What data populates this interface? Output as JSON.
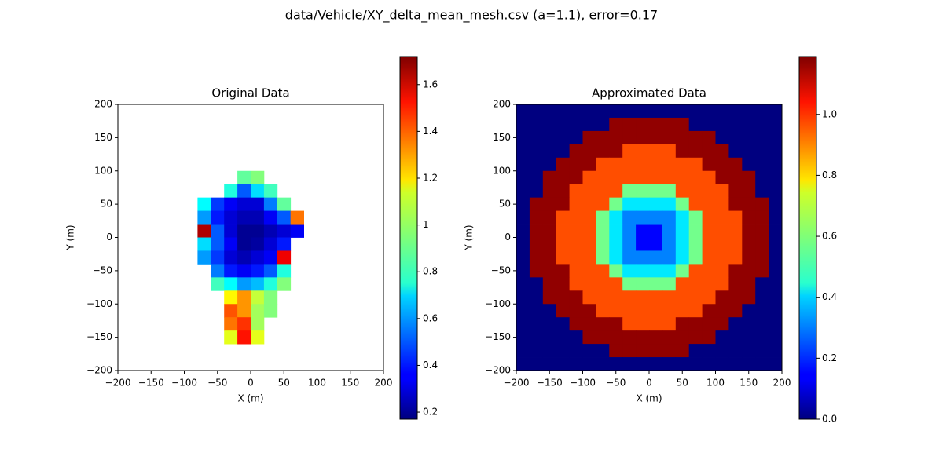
{
  "suptitle": "data/Vehicle/XY_delta_mean_mesh.csv (a=1.1), error=0.17",
  "chart_data": [
    {
      "type": "heatmap",
      "title": "Original Data",
      "x_label": "X (m)",
      "y_label": "Y (m)",
      "colormap": "jet",
      "xlim": [
        -200,
        200
      ],
      "ylim": [
        -200,
        200
      ],
      "xticks": [
        {
          "value": -200,
          "label": "−200"
        },
        {
          "value": -150,
          "label": "−150"
        },
        {
          "value": -100,
          "label": "−100"
        },
        {
          "value": -50,
          "label": "−50"
        },
        0,
        50,
        100,
        150,
        200
      ],
      "yticks": [
        {
          "value": -200,
          "label": "−200"
        },
        {
          "value": -150,
          "label": "−150"
        },
        {
          "value": -100,
          "label": "−100"
        },
        {
          "value": -50,
          "label": "−50"
        },
        0,
        50,
        100,
        150,
        200
      ],
      "clim": [
        0.17,
        1.72
      ],
      "cticks": [
        0.2,
        0.4,
        0.6,
        0.8,
        1.0,
        1.2,
        1.4,
        1.6
      ],
      "xbins": [
        -80,
        -60,
        -40,
        -20,
        0,
        20,
        40,
        60,
        80
      ],
      "ybins": [
        100,
        80,
        60,
        40,
        20,
        0,
        -20,
        -40,
        -60,
        -80,
        -100,
        -120,
        -140,
        -160
      ],
      "values": [
        [
          null,
          null,
          null,
          0.9,
          0.95,
          null,
          null,
          null
        ],
        [
          null,
          null,
          0.8,
          0.5,
          0.7,
          0.85,
          null,
          null
        ],
        [
          0.75,
          0.45,
          0.35,
          0.3,
          0.3,
          0.55,
          0.9,
          null
        ],
        [
          0.6,
          0.4,
          0.3,
          0.25,
          0.25,
          0.35,
          0.5,
          1.35
        ],
        [
          1.65,
          0.5,
          0.3,
          0.2,
          0.2,
          0.25,
          0.3,
          0.35
        ],
        [
          0.7,
          0.5,
          0.35,
          0.2,
          0.22,
          0.3,
          0.4,
          null
        ],
        [
          0.6,
          0.45,
          0.3,
          0.25,
          0.3,
          0.35,
          1.55,
          null
        ],
        [
          null,
          0.55,
          0.4,
          0.35,
          0.4,
          0.5,
          0.8,
          null
        ],
        [
          null,
          0.85,
          0.75,
          0.6,
          0.65,
          0.8,
          0.95,
          null
        ],
        [
          null,
          null,
          1.15,
          1.3,
          1.05,
          0.95,
          null,
          null
        ],
        [
          null,
          null,
          1.4,
          1.3,
          1.0,
          0.95,
          null,
          null
        ],
        [
          null,
          null,
          1.35,
          1.45,
          1.0,
          null,
          null,
          null
        ],
        [
          null,
          null,
          1.1,
          1.5,
          1.1,
          null,
          null,
          null
        ]
      ]
    },
    {
      "type": "heatmap",
      "title": "Approximated Data",
      "x_label": "X (m)",
      "y_label": "Y (m)",
      "colormap": "jet",
      "xlim": [
        -200,
        200
      ],
      "ylim": [
        -200,
        200
      ],
      "xticks": [
        {
          "value": -200,
          "label": "−200"
        },
        {
          "value": -150,
          "label": "−150"
        },
        {
          "value": -100,
          "label": "−100"
        },
        {
          "value": -50,
          "label": "−50"
        },
        0,
        50,
        100,
        150,
        200
      ],
      "yticks": [
        {
          "value": -200,
          "label": "−200"
        },
        {
          "value": -150,
          "label": "−150"
        },
        {
          "value": -100,
          "label": "−100"
        },
        {
          "value": -50,
          "label": "−50"
        },
        0,
        50,
        100,
        150,
        200
      ],
      "clim": [
        0,
        1.19
      ],
      "cticks": [
        {
          "value": 0,
          "label": "0.0"
        },
        0.2,
        0.4,
        0.6,
        0.8,
        {
          "value": 1,
          "label": "1.0"
        }
      ],
      "xbins": [
        -200,
        -180,
        -160,
        -140,
        -120,
        -100,
        -80,
        -60,
        -40,
        -20,
        0,
        20,
        40,
        60,
        80,
        100,
        120,
        140,
        160,
        180,
        200
      ],
      "ybins": [
        200,
        180,
        160,
        140,
        120,
        100,
        80,
        60,
        40,
        20,
        0,
        -20,
        -40,
        -60,
        -80,
        -100,
        -120,
        -140,
        -160,
        -180,
        -200
      ],
      "values": [
        [
          0,
          0,
          0,
          0,
          0,
          0,
          0,
          0,
          0,
          0,
          0,
          0,
          0,
          0,
          0,
          0,
          0,
          0,
          0,
          0
        ],
        [
          0,
          0,
          0,
          0,
          0,
          0,
          0,
          1.17,
          1.17,
          1.17,
          1.17,
          1.17,
          1.17,
          0,
          0,
          0,
          0,
          0,
          0,
          0
        ],
        [
          0,
          0,
          0,
          0,
          0,
          1.17,
          1.17,
          1.17,
          1.17,
          1.17,
          1.17,
          1.17,
          1.17,
          1.17,
          1.17,
          0,
          0,
          0,
          0,
          0
        ],
        [
          0,
          0,
          0,
          0,
          1.17,
          1.17,
          1.17,
          1.17,
          0.95,
          0.95,
          0.95,
          0.95,
          1.17,
          1.17,
          1.17,
          1.17,
          0,
          0,
          0,
          0
        ],
        [
          0,
          0,
          0,
          1.17,
          1.17,
          1.17,
          0.95,
          0.95,
          0.95,
          0.95,
          0.95,
          0.95,
          0.95,
          0.95,
          1.17,
          1.17,
          1.17,
          0,
          0,
          0
        ],
        [
          0,
          0,
          1.17,
          1.17,
          1.17,
          0.95,
          0.95,
          0.95,
          0.95,
          0.95,
          0.95,
          0.95,
          0.95,
          0.95,
          0.95,
          1.17,
          1.17,
          1.17,
          0,
          0
        ],
        [
          0,
          0,
          1.17,
          1.17,
          0.95,
          0.95,
          0.95,
          0.95,
          0.58,
          0.58,
          0.58,
          0.58,
          0.95,
          0.95,
          0.95,
          0.95,
          1.17,
          1.17,
          0,
          0
        ],
        [
          0,
          1.17,
          1.17,
          1.17,
          0.95,
          0.95,
          0.95,
          0.58,
          0.42,
          0.42,
          0.42,
          0.42,
          0.58,
          0.95,
          0.95,
          0.95,
          1.17,
          1.17,
          1.17,
          0
        ],
        [
          0,
          1.17,
          1.17,
          0.95,
          0.95,
          0.95,
          0.58,
          0.42,
          0.3,
          0.3,
          0.3,
          0.3,
          0.42,
          0.58,
          0.95,
          0.95,
          0.95,
          1.17,
          1.17,
          0
        ],
        [
          0,
          1.17,
          1.17,
          0.95,
          0.95,
          0.95,
          0.58,
          0.42,
          0.3,
          0.15,
          0.15,
          0.3,
          0.42,
          0.58,
          0.95,
          0.95,
          0.95,
          1.17,
          1.17,
          0
        ],
        [
          0,
          1.17,
          1.17,
          0.95,
          0.95,
          0.95,
          0.58,
          0.42,
          0.3,
          0.15,
          0.15,
          0.3,
          0.42,
          0.58,
          0.95,
          0.95,
          0.95,
          1.17,
          1.17,
          0
        ],
        [
          0,
          1.17,
          1.17,
          0.95,
          0.95,
          0.95,
          0.58,
          0.42,
          0.3,
          0.3,
          0.3,
          0.3,
          0.42,
          0.58,
          0.95,
          0.95,
          0.95,
          1.17,
          1.17,
          0
        ],
        [
          0,
          1.17,
          1.17,
          1.17,
          0.95,
          0.95,
          0.95,
          0.58,
          0.42,
          0.42,
          0.42,
          0.42,
          0.58,
          0.95,
          0.95,
          0.95,
          1.17,
          1.17,
          1.17,
          0
        ],
        [
          0,
          0,
          1.17,
          1.17,
          0.95,
          0.95,
          0.95,
          0.95,
          0.58,
          0.58,
          0.58,
          0.58,
          0.95,
          0.95,
          0.95,
          0.95,
          1.17,
          1.17,
          0,
          0
        ],
        [
          0,
          0,
          1.17,
          1.17,
          1.17,
          0.95,
          0.95,
          0.95,
          0.95,
          0.95,
          0.95,
          0.95,
          0.95,
          0.95,
          0.95,
          1.17,
          1.17,
          1.17,
          0,
          0
        ],
        [
          0,
          0,
          0,
          1.17,
          1.17,
          1.17,
          0.95,
          0.95,
          0.95,
          0.95,
          0.95,
          0.95,
          0.95,
          0.95,
          1.17,
          1.17,
          1.17,
          0,
          0,
          0
        ],
        [
          0,
          0,
          0,
          0,
          1.17,
          1.17,
          1.17,
          1.17,
          0.95,
          0.95,
          0.95,
          0.95,
          1.17,
          1.17,
          1.17,
          1.17,
          0,
          0,
          0,
          0
        ],
        [
          0,
          0,
          0,
          0,
          0,
          1.17,
          1.17,
          1.17,
          1.17,
          1.17,
          1.17,
          1.17,
          1.17,
          1.17,
          1.17,
          0,
          0,
          0,
          0,
          0
        ],
        [
          0,
          0,
          0,
          0,
          0,
          0,
          0,
          1.17,
          1.17,
          1.17,
          1.17,
          1.17,
          1.17,
          0,
          0,
          0,
          0,
          0,
          0,
          0
        ],
        [
          0,
          0,
          0,
          0,
          0,
          0,
          0,
          0,
          0,
          0,
          0,
          0,
          0,
          0,
          0,
          0,
          0,
          0,
          0,
          0
        ]
      ]
    }
  ]
}
